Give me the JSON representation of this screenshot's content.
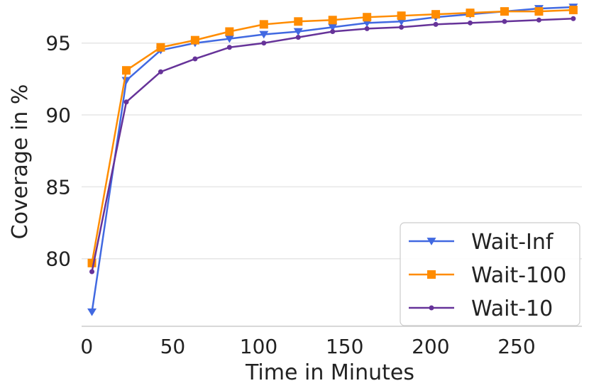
{
  "chart_data": {
    "type": "line",
    "title": "",
    "xlabel": "Time in Minutes",
    "ylabel": "Coverage in %",
    "xlim": [
      -3,
      288
    ],
    "ylim": [
      75.3,
      97.6
    ],
    "xticks": [
      0,
      50,
      100,
      150,
      200,
      250
    ],
    "yticks": [
      80,
      85,
      90,
      95
    ],
    "grid": "horizontal",
    "legend_position": "bottom-right",
    "x": [
      3,
      23,
      43,
      63,
      83,
      103,
      123,
      143,
      163,
      183,
      203,
      223,
      243,
      263,
      283
    ],
    "series": [
      {
        "name": "Wait-Inf",
        "color": "#4169e1",
        "marker": "triangle-down",
        "values": [
          76.3,
          92.4,
          94.5,
          95.0,
          95.3,
          95.6,
          95.8,
          96.1,
          96.4,
          96.5,
          96.8,
          97.0,
          97.2,
          97.4,
          97.5
        ]
      },
      {
        "name": "Wait-100",
        "color": "#ff8c00",
        "marker": "square",
        "values": [
          79.7,
          93.1,
          94.7,
          95.2,
          95.8,
          96.3,
          96.5,
          96.6,
          96.8,
          96.9,
          97.0,
          97.1,
          97.2,
          97.2,
          97.3
        ]
      },
      {
        "name": "Wait-10",
        "color": "#663399",
        "marker": "circle",
        "values": [
          79.1,
          90.9,
          93.0,
          93.9,
          94.7,
          95.0,
          95.4,
          95.8,
          96.0,
          96.1,
          96.3,
          96.4,
          96.5,
          96.6,
          96.7
        ]
      }
    ]
  }
}
